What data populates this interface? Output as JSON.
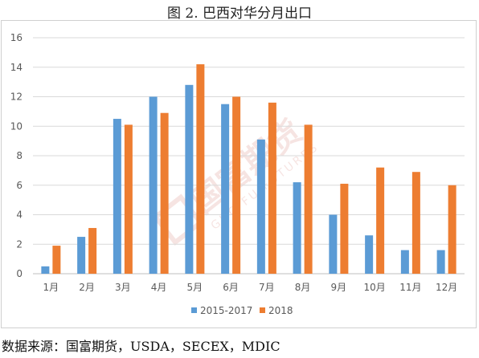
{
  "title": "图 2. 巴西对华分月出口",
  "source": "数据来源：国富期货，USDA，SECEX，MDIC",
  "watermark": {
    "text": "国富期货",
    "subtext": "GUO FU FUTURES"
  },
  "chart_data": {
    "type": "bar",
    "categories": [
      "1月",
      "2月",
      "3月",
      "4月",
      "5月",
      "6月",
      "7月",
      "8月",
      "9月",
      "10月",
      "11月",
      "12月"
    ],
    "series": [
      {
        "name": "2015-2017",
        "color": "#5b9bd5",
        "values": [
          0.5,
          2.5,
          10.5,
          12.0,
          12.8,
          11.5,
          9.1,
          6.2,
          4.0,
          2.6,
          1.6,
          1.6
        ]
      },
      {
        "name": "2018",
        "color": "#ed7d31",
        "values": [
          1.9,
          3.1,
          10.1,
          10.9,
          14.2,
          12.0,
          11.6,
          10.1,
          6.1,
          7.2,
          6.9,
          6.0
        ]
      }
    ],
    "ylim": [
      0,
      16
    ],
    "yticks": [
      "0",
      "2",
      "4",
      "6",
      "8",
      "10",
      "12",
      "14",
      "16"
    ],
    "grid": true,
    "legend_position": "bottom"
  }
}
